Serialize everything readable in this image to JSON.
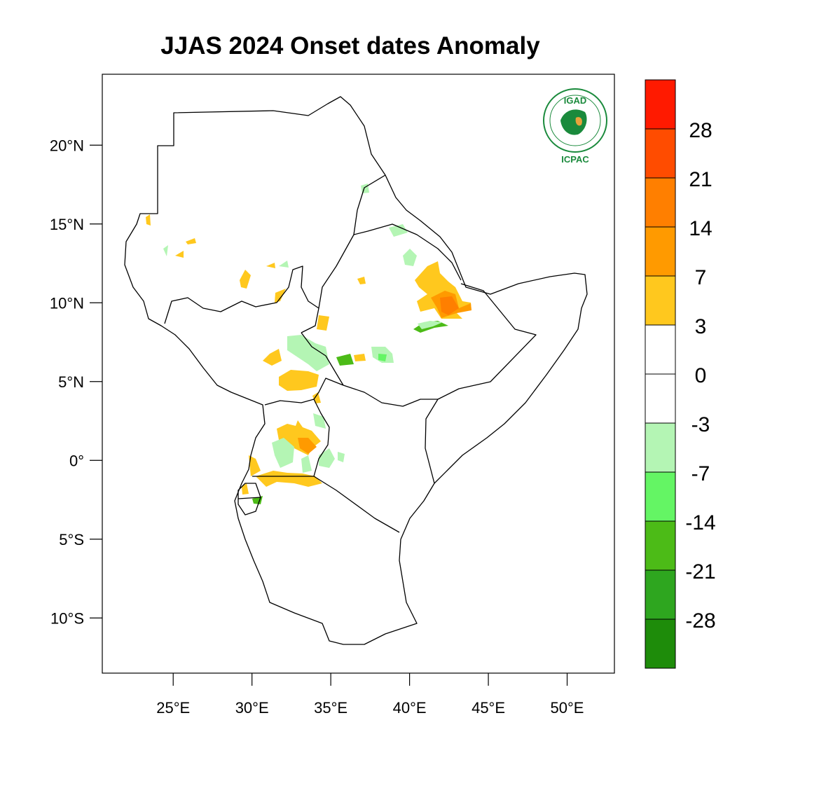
{
  "title": "JJAS 2024 Onset dates Anomaly",
  "logo": {
    "top_text": "IGAD",
    "bottom_text": "ICPAC",
    "color": "#1a8a3c",
    "accent": "#e8a33c"
  },
  "map": {
    "lon_range": [
      20.5,
      53
    ],
    "lat_range": [
      -13.5,
      24.5
    ],
    "lat_ticks": [
      {
        "value": 20,
        "label": "20°N"
      },
      {
        "value": 15,
        "label": "15°N"
      },
      {
        "value": 10,
        "label": "10°N"
      },
      {
        "value": 5,
        "label": "5°N"
      },
      {
        "value": 0,
        "label": "0°"
      },
      {
        "value": -5,
        "label": "5°S"
      },
      {
        "value": -10,
        "label": "10°S"
      }
    ],
    "lon_ticks": [
      {
        "value": 25,
        "label": "25°E"
      },
      {
        "value": 30,
        "label": "30°E"
      },
      {
        "value": 35,
        "label": "35°E"
      },
      {
        "value": 40,
        "label": "40°E"
      },
      {
        "value": 45,
        "label": "45°E"
      },
      {
        "value": 50,
        "label": "50°E"
      }
    ]
  },
  "colorbar": {
    "colors": [
      "#ff1a00",
      "#ff4c00",
      "#ff7f00",
      "#ff9a00",
      "#ffc81e",
      "#ffffff",
      "#ffffff",
      "#b4f5b4",
      "#64f564",
      "#4cbb17",
      "#2ea61f",
      "#1e8c0a"
    ],
    "labels": [
      "28",
      "21",
      "14",
      "7",
      "3",
      "0",
      "-3",
      "-7",
      "-14",
      "-21",
      "-28"
    ]
  }
}
